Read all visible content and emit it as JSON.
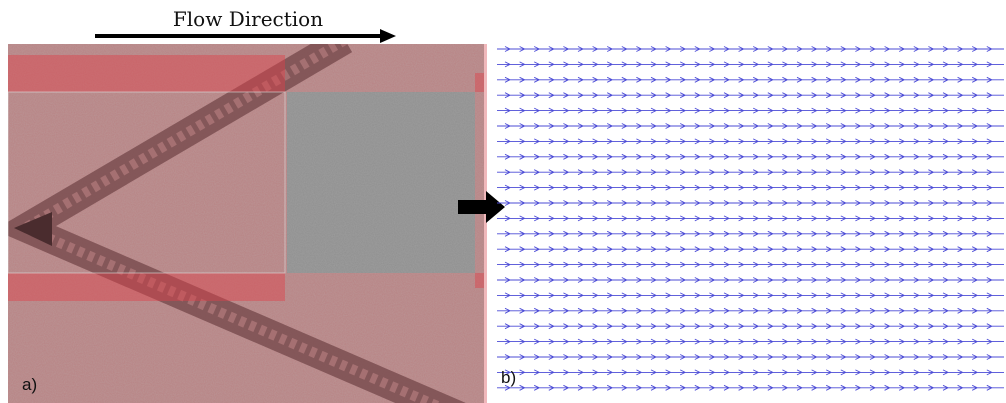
{
  "header": {
    "title": "Flow Direction"
  },
  "panels": [
    {
      "label": "a)"
    },
    {
      "label": "b)"
    }
  ]
}
